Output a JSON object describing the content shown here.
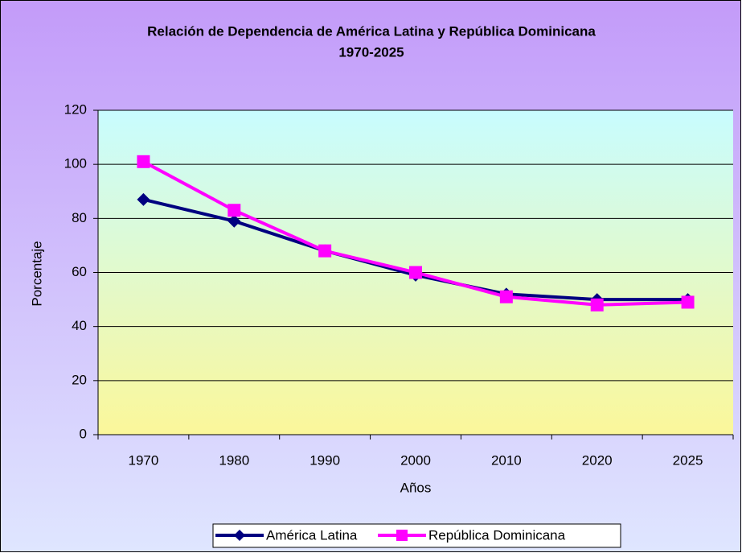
{
  "chart_data": {
    "type": "line",
    "title": "Relación de Dependencia de América Latina y República Dominicana",
    "subtitle": "1970-2025",
    "x_label": "Años",
    "y_label": "Porcentaje",
    "categories": [
      "1970",
      "1980",
      "1990",
      "2000",
      "2010",
      "2020",
      "2025"
    ],
    "series": [
      {
        "name": "América Latina",
        "color": "#000080",
        "marker": "diamond",
        "values": [
          87,
          79,
          68,
          59,
          52,
          50,
          50
        ]
      },
      {
        "name": "República Dominicana",
        "color": "#ff00ff",
        "marker": "square",
        "values": [
          101,
          83,
          68,
          60,
          51,
          48,
          49
        ]
      }
    ],
    "ylim": [
      0,
      120
    ],
    "yticks": [
      0,
      20,
      40,
      60,
      80,
      100,
      120
    ],
    "grid": true,
    "legend": "bottom"
  }
}
